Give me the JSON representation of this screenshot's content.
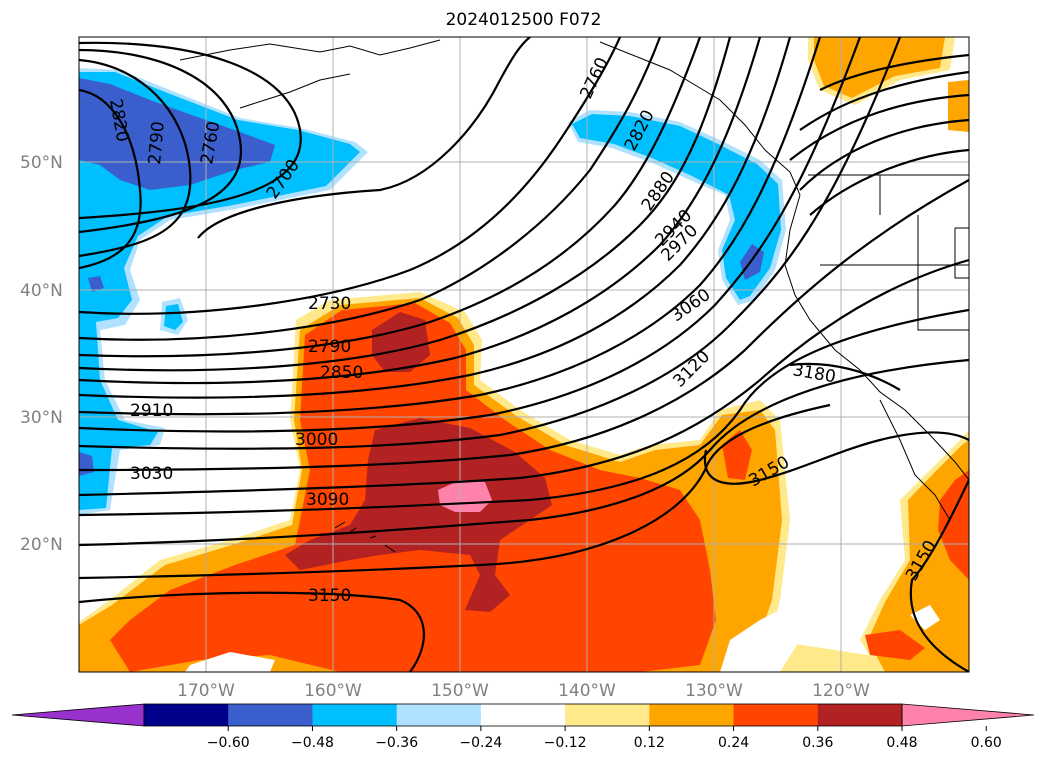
{
  "title": "2024012500 F072",
  "latitude_labels": [
    "50°N",
    "40°N",
    "30°N",
    "20°N"
  ],
  "longitude_labels": [
    "170°W",
    "160°W",
    "150°W",
    "140°W",
    "130°W",
    "120°W"
  ],
  "colorbar": {
    "ticks": [
      "−0.60",
      "−0.48",
      "−0.36",
      "−0.24",
      "−0.12",
      "0.12",
      "0.24",
      "0.36",
      "0.48",
      "0.60"
    ],
    "colors": [
      "#9932cc",
      "#00008b",
      "#3a5fcd",
      "#00bfff",
      "#b0e2ff",
      "#ffffff",
      "#ffe98a",
      "#ffa500",
      "#ff4500",
      "#b22222",
      "#ff82ab"
    ]
  },
  "contour_labels": [
    "2820",
    "2790",
    "2760",
    "2700",
    "2760",
    "2820",
    "2880",
    "2940",
    "2970",
    "3060",
    "3120",
    "3180",
    "2730",
    "2790",
    "2850",
    "2910",
    "3000",
    "3030",
    "3090",
    "3150",
    "3150",
    "3150"
  ]
}
